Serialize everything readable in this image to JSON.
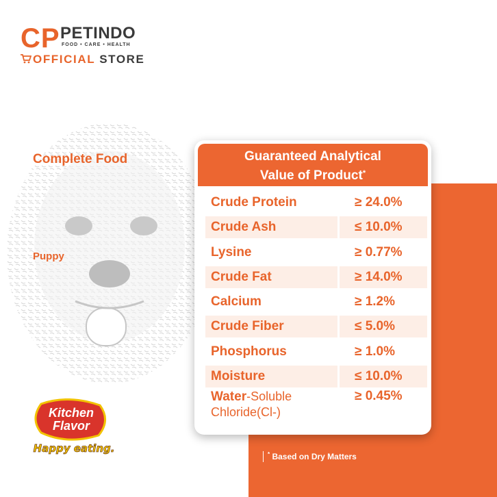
{
  "brand": {
    "cp": "CP",
    "name": "PETINDO",
    "tagline": "FOOD • CARE • HEALTH",
    "store_prefix": "OFFICIAL",
    "store_suffix": "STORE"
  },
  "product": {
    "category": "Complete Food",
    "life_stage": "Puppy"
  },
  "table": {
    "title_line1": "Guaranteed Analytical",
    "title_line2": "Value of Product",
    "title_mark": "*",
    "rows": [
      {
        "name": "Crude Protein",
        "value": "≥ 24.0%"
      },
      {
        "name": "Crude Ash",
        "value": "≤ 10.0%"
      },
      {
        "name": "Lysine",
        "value": "≥ 0.77%"
      },
      {
        "name": "Crude Fat",
        "value": "≥ 14.0%"
      },
      {
        "name": "Calcium",
        "value": "≥ 1.2%"
      },
      {
        "name": "Crude Fiber",
        "value": "≤ 5.0%"
      },
      {
        "name": "Phosphorus",
        "value": "≥ 1.0%"
      },
      {
        "name": "Moisture",
        "value": "≤ 10.0%"
      },
      {
        "name_bold": "Water",
        "name_rest_line1": "-Soluble",
        "name_line2": "Chloride(Cl-)",
        "value": "≥ 0.45%"
      }
    ]
  },
  "footnote": {
    "mark": "*",
    "text": "Based on Dry Matters"
  },
  "kitchen_flavor": {
    "line1": "Kitchen",
    "line2": "Flavor",
    "slogan": "Happy eating."
  },
  "colors": {
    "accent": "#ec6631",
    "shade": "#fdeee6",
    "dark_text": "#3a3a3a"
  }
}
